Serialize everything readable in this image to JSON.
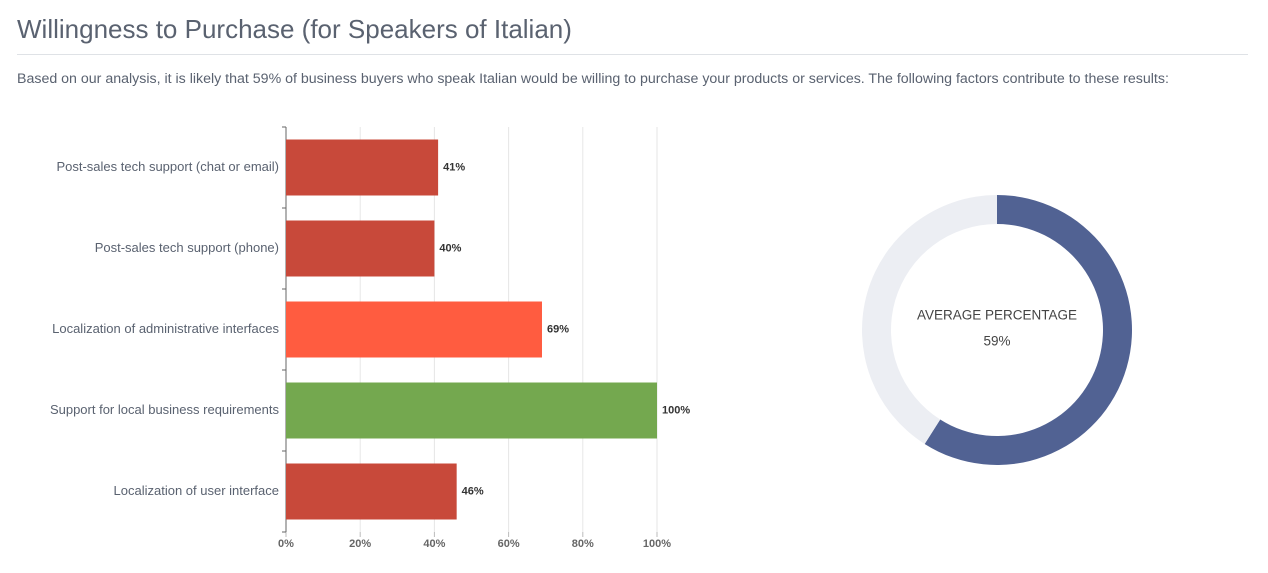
{
  "header": {
    "title": "Willingness to Purchase (for Speakers of Italian)",
    "description": "Based on our analysis, it is likely that 59% of business buyers who speak Italian would be willing to purchase your products or services. The following factors contribute to these results:"
  },
  "chart_data": [
    {
      "type": "bar",
      "orientation": "horizontal",
      "categories": [
        "Post-sales tech support (chat or email)",
        "Post-sales tech support (phone)",
        "Localization of administrative interfaces",
        "Support for local business requirements",
        "Localization of user interface"
      ],
      "values": [
        41,
        40,
        69,
        100,
        46
      ],
      "value_labels": [
        "41%",
        "40%",
        "69%",
        "100%",
        "46%"
      ],
      "colors": [
        "#c8493a",
        "#c8493a",
        "#ff5c40",
        "#74a84f",
        "#c8493a"
      ],
      "xlim": [
        0,
        100
      ],
      "xticks": [
        {
          "value": 0,
          "label": "0%"
        },
        {
          "value": 20,
          "label": "20%"
        },
        {
          "value": 40,
          "label": "40%"
        },
        {
          "value": 60,
          "label": "60%"
        },
        {
          "value": 80,
          "label": "80%"
        },
        {
          "value": 100,
          "label": "100%"
        }
      ],
      "grid": true
    },
    {
      "type": "donut",
      "center_label": "AVERAGE PERCENTAGE",
      "values": [
        59,
        41
      ],
      "value_labels": [
        "59%",
        null
      ],
      "colors": [
        "#516293",
        "#eceef3"
      ]
    }
  ]
}
